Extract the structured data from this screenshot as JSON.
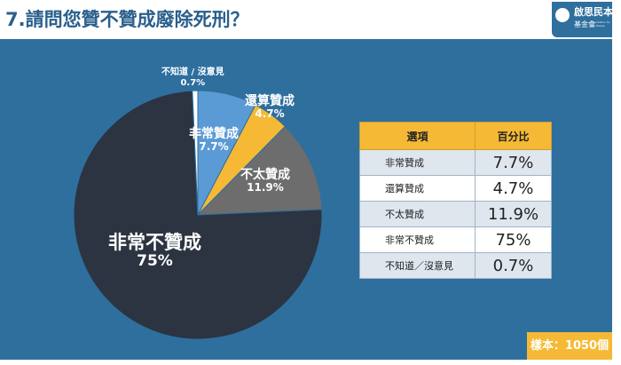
{
  "title": "7.請問您贊不贊成廢除死刑？",
  "logo": {
    "name": "啟思民本",
    "sub": "基金會",
    "en": "Foundation for the People"
  },
  "chart_data": {
    "type": "pie",
    "title": "7.請問您贊不贊成廢除死刑？",
    "slices": [
      {
        "label": "非常贊成",
        "value": 7.7,
        "display": "7.7%",
        "color": "#5b9bd5"
      },
      {
        "label": "還算贊成",
        "value": 4.7,
        "display": "4.7%",
        "color": "#f5b935"
      },
      {
        "label": "不太贊成",
        "value": 11.9,
        "display": "11.9%",
        "color": "#6d6d6d"
      },
      {
        "label": "非常不贊成",
        "value": 75,
        "display": "75%",
        "color": "#2b3440"
      },
      {
        "label": "不知道 / 沒意見",
        "value": 0.7,
        "display": "0.7%",
        "color": "#ffffff"
      }
    ]
  },
  "table": {
    "header": {
      "option": "選項",
      "percent": "百分比"
    },
    "rows": [
      {
        "option": "非常贊成",
        "percent": "7.7%"
      },
      {
        "option": "還算贊成",
        "percent": "4.7%"
      },
      {
        "option": "不太贊成",
        "percent": "11.9%"
      },
      {
        "option": "非常不贊成",
        "percent": "75%"
      },
      {
        "option": "不知道／沒意見",
        "percent": "0.7%"
      }
    ]
  },
  "sample": "樣本：1050個"
}
